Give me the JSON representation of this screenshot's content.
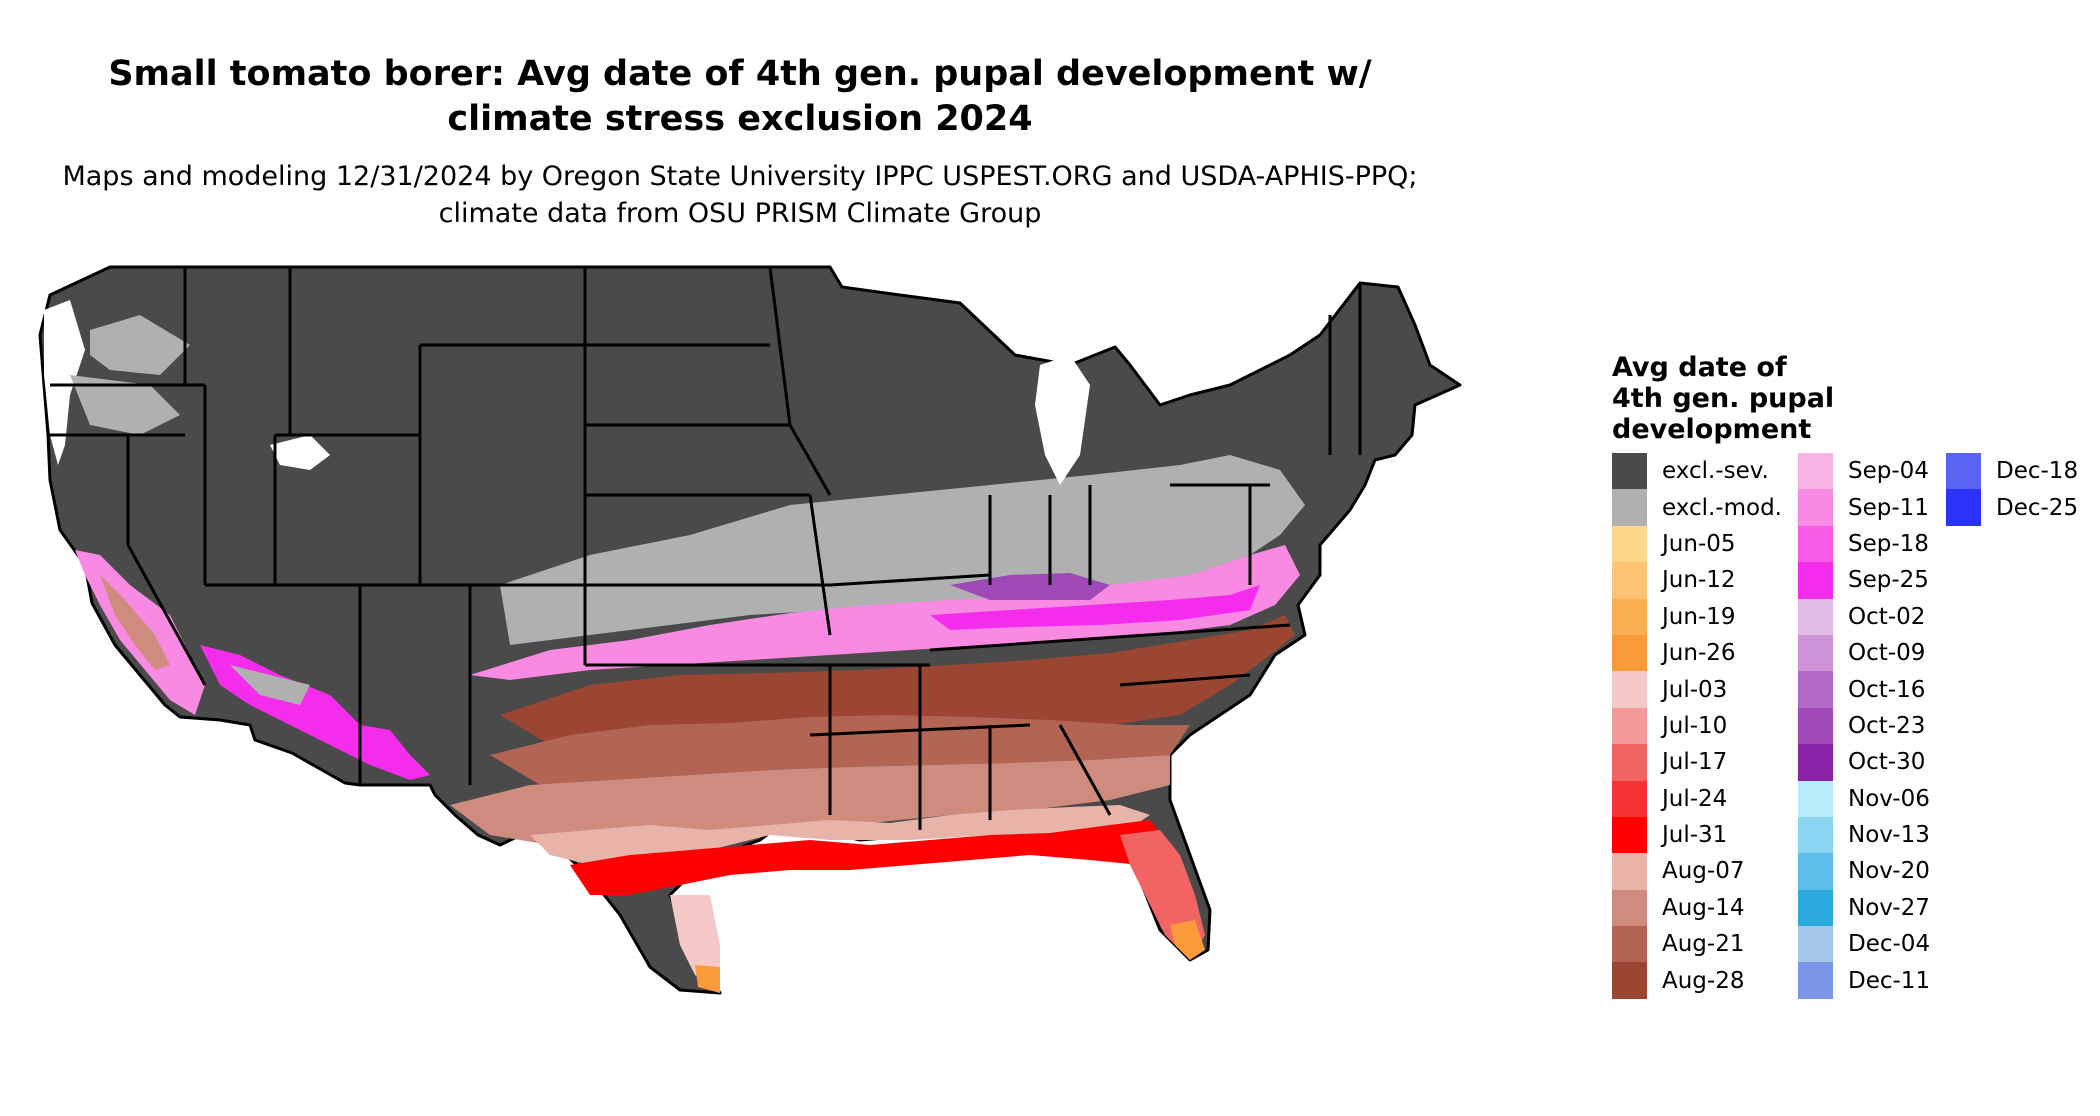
{
  "title": "Small tomato borer: Avg date of 4th gen. pupal development w/ climate stress exclusion 2024",
  "subtitle": "Maps and modeling 12/31/2024 by Oregon State University IPPC USPEST.ORG and USDA-APHIS-PPQ; climate data from OSU PRISM Climate Group",
  "legend": {
    "title": "Avg date of 4th gen. pupal development",
    "col1": [
      {
        "label": "excl.-sev.",
        "color": "#4a4a4a"
      },
      {
        "label": "excl.-mod.",
        "color": "#b0b0b0"
      },
      {
        "label": "Jun-05",
        "color": "#fdd68a"
      },
      {
        "label": "Jun-12",
        "color": "#fdc473"
      },
      {
        "label": "Jun-19",
        "color": "#fcae53"
      },
      {
        "label": "Jun-26",
        "color": "#fb9a3a"
      },
      {
        "label": "Jul-03",
        "color": "#f6c9c9"
      },
      {
        "label": "Jul-10",
        "color": "#f39a9a"
      },
      {
        "label": "Jul-17",
        "color": "#f26464"
      },
      {
        "label": "Jul-24",
        "color": "#f43232"
      },
      {
        "label": "Jul-31",
        "color": "#ff0000"
      },
      {
        "label": "Aug-07",
        "color": "#e8b3a8"
      },
      {
        "label": "Aug-14",
        "color": "#cf8c7e"
      },
      {
        "label": "Aug-21",
        "color": "#b26552"
      },
      {
        "label": "Aug-28",
        "color": "#9b4633"
      }
    ],
    "col2": [
      {
        "label": "Sep-04",
        "color": "#f9b4e3"
      },
      {
        "label": "Sep-11",
        "color": "#f98ae4"
      },
      {
        "label": "Sep-18",
        "color": "#f65ce6"
      },
      {
        "label": "Sep-25",
        "color": "#f42ceb"
      },
      {
        "label": "Oct-02",
        "color": "#e1bde6"
      },
      {
        "label": "Oct-09",
        "color": "#cc93d6"
      },
      {
        "label": "Oct-16",
        "color": "#b36ac6"
      },
      {
        "label": "Oct-23",
        "color": "#9f48b8"
      },
      {
        "label": "Oct-30",
        "color": "#8b23a8"
      },
      {
        "label": "Nov-06",
        "color": "#b9ecfb"
      },
      {
        "label": "Nov-13",
        "color": "#8ad5f1"
      },
      {
        "label": "Nov-20",
        "color": "#5bbfe9"
      },
      {
        "label": "Nov-27",
        "color": "#2ba8dc"
      },
      {
        "label": "Dec-04",
        "color": "#a5c6e9"
      },
      {
        "label": "Dec-11",
        "color": "#7b96e8"
      }
    ],
    "col3": [
      {
        "label": "Dec-18",
        "color": "#5a64f2"
      },
      {
        "label": "Dec-25",
        "color": "#2a33f8"
      }
    ]
  }
}
